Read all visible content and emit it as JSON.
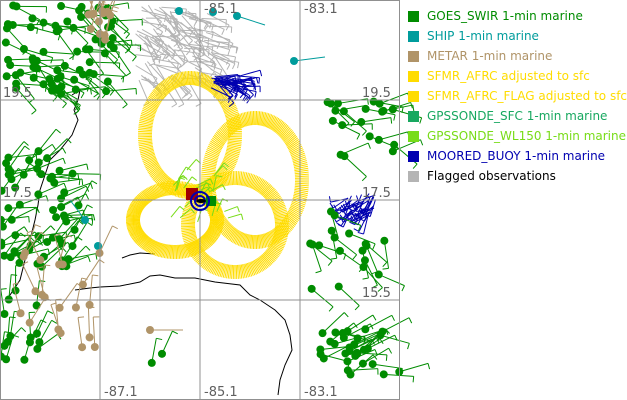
{
  "map": {
    "lon_labels_top": [
      "-85.1",
      "-83.1"
    ],
    "lon_labels_bottom": [
      "-87.1",
      "-85.1",
      "-83.1"
    ],
    "lat_labels_left": [
      "19.5",
      "17.5"
    ],
    "lat_labels_right": [
      "19.5",
      "17.5",
      "15.5"
    ]
  },
  "legend": [
    {
      "label": "GOES_SWIR 1-min marine",
      "color": "#008c00"
    },
    {
      "label": "SHIP 1-min marine",
      "color": "#009c9c"
    },
    {
      "label": "METAR 1-min marine",
      "color": "#b09468"
    },
    {
      "label": "SFMR_AFRC adjusted to sfc",
      "color": "#ffdc00"
    },
    {
      "label": "SFMR_AFRC_FLAG adjusted to sfc",
      "color": "#ffdc00"
    },
    {
      "label": "GPSSONDE_SFC 1-min marine",
      "color": "#18a860"
    },
    {
      "label": "GPSSONDE_WL150 1-min marine",
      "color": "#78dc18"
    },
    {
      "label": "MOORED_BUOY 1-min marine",
      "color": "#0000b0"
    },
    {
      "label": "Flagged observations",
      "color": "#b4b4b4",
      "text_color": "#000000"
    }
  ]
}
